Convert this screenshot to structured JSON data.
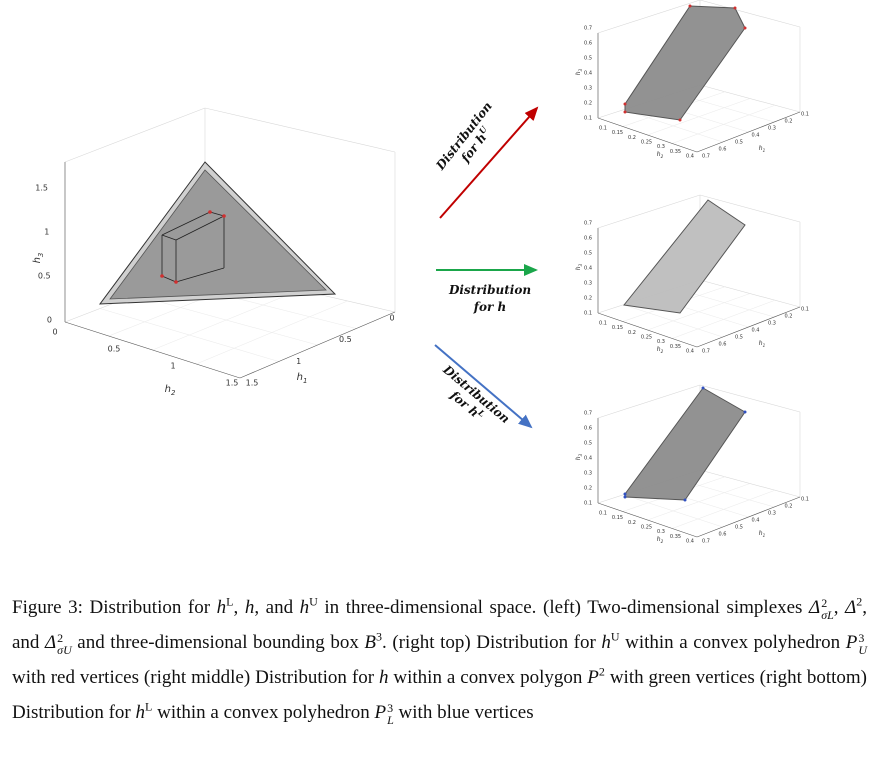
{
  "figure": {
    "left_plot": {
      "xlabel": [
        "h",
        "2"
      ],
      "ylabel": [
        "h",
        "1"
      ],
      "zlabel": [
        "h",
        "3"
      ],
      "xticks": [
        0,
        0.5,
        1,
        1.5
      ],
      "yticks": [
        1.5,
        1,
        0.5,
        0
      ],
      "zticks": [
        0,
        0.5,
        1,
        1.5
      ]
    },
    "arrows": [
      {
        "line1": "Distribution",
        "line2": "for ",
        "var": "h",
        "sup": "U"
      },
      {
        "line1": "Distribution",
        "line2": "for ",
        "var": "h"
      },
      {
        "line1": "Distribution",
        "line2": "for ",
        "var": "h",
        "sup": "L"
      }
    ],
    "right_plots": [
      {
        "xlabel": [
          "h",
          "2"
        ],
        "ylabel": [
          "h",
          "1"
        ],
        "zlabel": [
          "h",
          "3"
        ],
        "xticks": [
          0.1,
          0.15,
          0.2,
          0.25,
          0.3,
          0.35,
          0.4
        ],
        "yticks": [
          0.7,
          0.6,
          0.5,
          0.4,
          0.3,
          0.2,
          0.1
        ],
        "zticks": [
          0.1,
          0.2,
          0.3,
          0.4,
          0.5,
          0.6,
          0.7
        ]
      },
      {
        "xlabel": [
          "h",
          "2"
        ],
        "ylabel": [
          "h",
          "1"
        ],
        "zlabel": [
          "h",
          "3"
        ],
        "xticks": [
          0.1,
          0.15,
          0.2,
          0.25,
          0.3,
          0.35,
          0.4
        ],
        "yticks": [
          0.7,
          0.6,
          0.5,
          0.4,
          0.3,
          0.2,
          0.1
        ],
        "zticks": [
          0.1,
          0.2,
          0.3,
          0.4,
          0.5,
          0.6,
          0.7
        ]
      },
      {
        "xlabel": [
          "h",
          "2"
        ],
        "ylabel": [
          "h",
          "1"
        ],
        "zlabel": [
          "h",
          "3"
        ],
        "xticks": [
          0.1,
          0.15,
          0.2,
          0.25,
          0.3,
          0.35,
          0.4
        ],
        "yticks": [
          0.7,
          0.6,
          0.5,
          0.4,
          0.3,
          0.2,
          0.1
        ],
        "zticks": [
          0.1,
          0.2,
          0.3,
          0.4,
          0.5,
          0.6,
          0.7
        ]
      }
    ]
  },
  "caption": [
    "Figure 3: Distribution for ",
    "h",
    "L",
    ", ",
    "h",
    ", and ",
    "h",
    "U",
    " in three-dimensional space. (left) Two-dimensional simplexes ",
    "Δ",
    "2",
    "σL",
    ", ",
    "Δ",
    "2",
    ", and ",
    "Δ",
    "2",
    "σU",
    " and three-dimensional bounding box ",
    "B",
    "3",
    ". (right top) Distribution for ",
    "h",
    "U",
    " within a convex polyhedron ",
    "P",
    "3",
    "U",
    " with red vertices (right middle) Distribution for ",
    "h",
    " within a convex polygon ",
    "P",
    "2",
    " with green vertices (right bottom) Distribution for ",
    "h",
    "L",
    " within a convex polyhedron ",
    "P",
    "3",
    "L",
    " with blue vertices"
  ]
}
